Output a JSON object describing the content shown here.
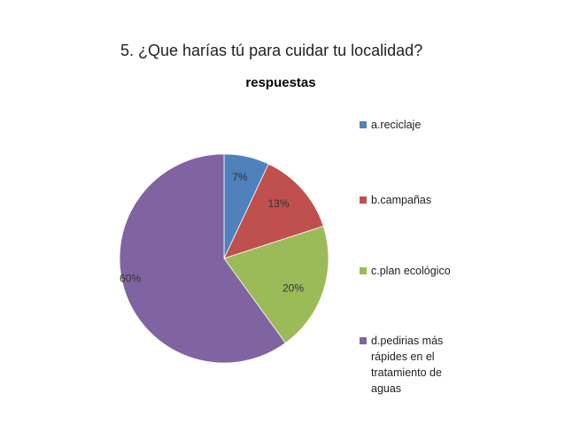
{
  "page": {
    "question": "5. ¿Que harías tú para cuidar tu localidad?"
  },
  "chart_data": {
    "type": "pie",
    "title": "respuestas",
    "start_angle_deg": -90,
    "direction": "clockwise",
    "legend_position": "right",
    "slices": [
      {
        "label": [
          "a.reciclaje"
        ],
        "value": 7,
        "value_label": "7%",
        "color": "#4F81BD"
      },
      {
        "label": [
          "b.campañas"
        ],
        "value": 13,
        "value_label": "13%",
        "color": "#C0504D"
      },
      {
        "label": [
          "c.plan ecológico"
        ],
        "value": 20,
        "value_label": "20%",
        "color": "#9BBB59"
      },
      {
        "label": [
          "d.pedirias más",
          "rápides en el",
          "tratamiento de",
          "aguas"
        ],
        "value": 60,
        "value_label": "60%",
        "color": "#8064A2"
      }
    ]
  }
}
